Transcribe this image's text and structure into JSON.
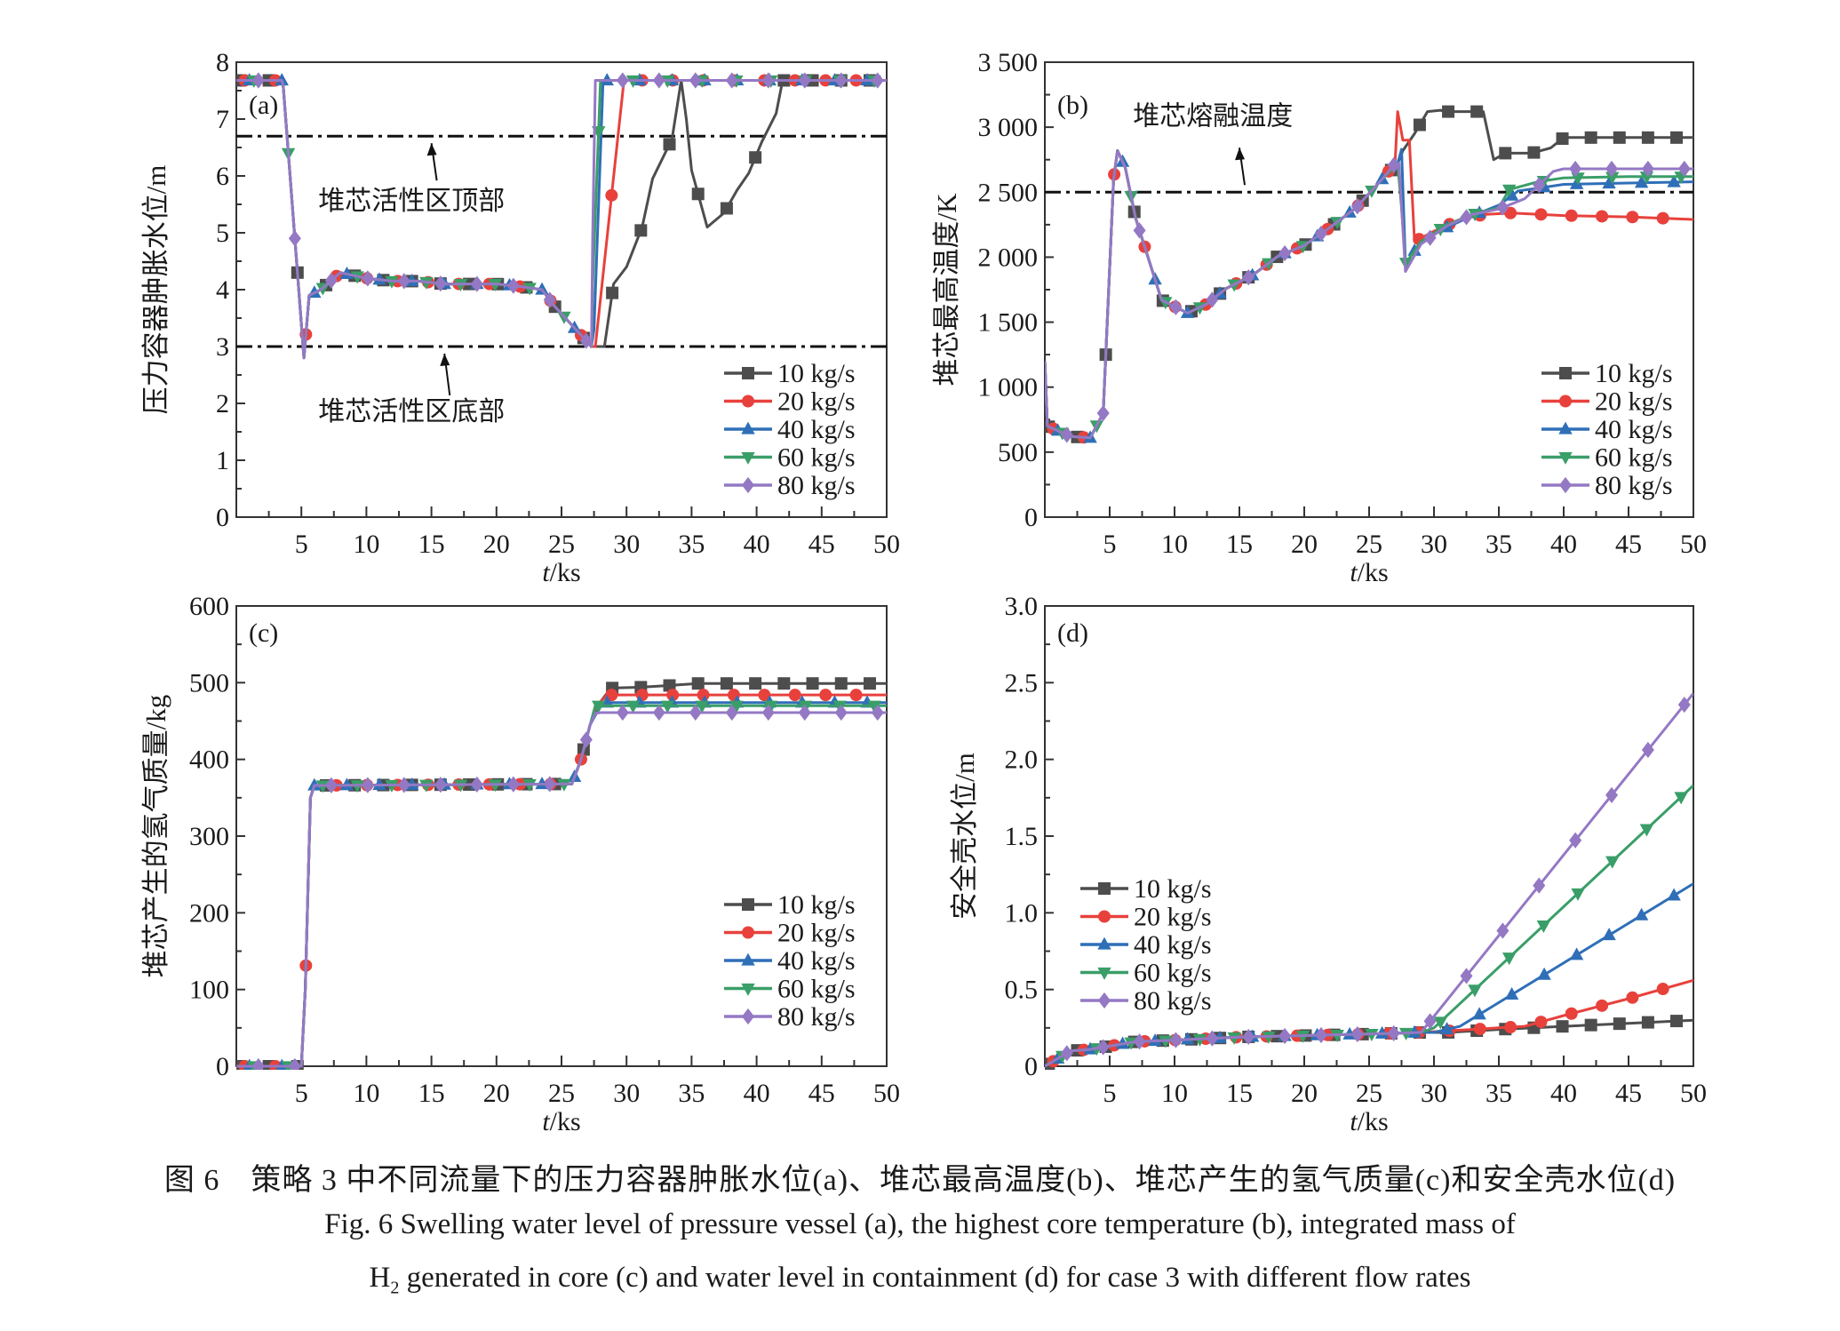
{
  "figure": {
    "caption_cn": "图 6　策略 3 中不同流量下的压力容器肿胀水位(a)、堆芯最高温度(b)、堆芯产生的氢气质量(c)和安全壳水位(d)",
    "caption_en_line1": "Fig. 6  Swelling water level of pressure vessel (a), the highest core temperature (b), integrated mass of",
    "caption_en_line2_prefix": "H",
    "caption_en_line2_sub": "2",
    "caption_en_line2_rest": " generated in core (c) and water level in containment (d) for case 3 with different flow rates"
  },
  "series_style": [
    {
      "name": "10 kg/s",
      "color": "#4d4d4d",
      "marker": "square"
    },
    {
      "name": "20 kg/s",
      "color": "#e8413c",
      "marker": "circle"
    },
    {
      "name": "40 kg/s",
      "color": "#2f6fb8",
      "marker": "triangle-up"
    },
    {
      "name": "60 kg/s",
      "color": "#3a9e68",
      "marker": "triangle-down"
    },
    {
      "name": "80 kg/s",
      "color": "#9478c4",
      "marker": "diamond"
    }
  ],
  "chart_data": [
    {
      "id": "a",
      "type": "line",
      "panel_label": "(a)",
      "xlabel_italic": "t",
      "xlabel_rest": "/ks",
      "ylabel": "压力容器肿胀水位/m",
      "xlim": [
        0,
        50
      ],
      "ylim": [
        0,
        8
      ],
      "xticks": [
        5,
        10,
        15,
        20,
        25,
        30,
        35,
        40,
        45,
        50
      ],
      "yticks": [
        0,
        1,
        2,
        3,
        4,
        5,
        6,
        7,
        8
      ],
      "ytick_labels": [
        "0",
        "1",
        "2",
        "3",
        "4",
        "5",
        "6",
        "7",
        "8"
      ],
      "legend_position": "bottom-right",
      "reference_lines": [
        {
          "y": 6.7,
          "label": "堆芯活性区顶部",
          "arrow_x": 15
        },
        {
          "y": 3.0,
          "label": "堆芯活性区底部",
          "arrow_x": 16
        }
      ],
      "series": [
        {
          "name": "10 kg/s",
          "x": [
            0,
            3.5,
            3.6,
            5.2,
            5.6,
            6.5,
            8,
            10,
            12,
            14,
            16,
            18,
            20,
            22,
            23.5,
            24.5,
            27.3,
            28.3,
            29,
            30,
            31.2,
            32,
            33.5,
            34.2,
            34.6,
            35,
            35.6,
            36.2,
            37.5,
            38.5,
            39.4,
            40.4,
            41.5,
            42,
            50
          ],
          "y": [
            7.68,
            7.68,
            7.6,
            2.8,
            3.9,
            4.0,
            4.3,
            4.2,
            4.15,
            4.15,
            4.1,
            4.1,
            4.1,
            4.05,
            4.0,
            3.7,
            3.0,
            3.0,
            4.1,
            4.4,
            5.1,
            5.95,
            6.65,
            7.68,
            7.0,
            6.1,
            5.6,
            5.1,
            5.35,
            5.75,
            6.05,
            6.6,
            7.1,
            7.68,
            7.68
          ]
        },
        {
          "name": "20 kg/s",
          "x": [
            0,
            3.5,
            3.6,
            5.2,
            5.6,
            6.5,
            8,
            10,
            12,
            14,
            16,
            18,
            20,
            22,
            23.5,
            24.5,
            27.3,
            27.6,
            29.8,
            50
          ],
          "y": [
            7.68,
            7.68,
            7.6,
            2.8,
            3.9,
            4.0,
            4.3,
            4.2,
            4.15,
            4.15,
            4.1,
            4.1,
            4.1,
            4.05,
            4.0,
            3.7,
            3.0,
            3.0,
            7.68,
            7.68
          ]
        },
        {
          "name": "40 kg/s",
          "x": [
            0,
            3.5,
            3.6,
            5.2,
            5.6,
            6.5,
            8,
            10,
            12,
            14,
            16,
            18,
            20,
            22,
            23.5,
            24.5,
            27.3,
            27.5,
            28.2,
            50
          ],
          "y": [
            7.68,
            7.68,
            7.6,
            2.8,
            3.9,
            4.0,
            4.3,
            4.2,
            4.15,
            4.15,
            4.1,
            4.1,
            4.1,
            4.05,
            4.0,
            3.7,
            3.0,
            3.3,
            7.68,
            7.68
          ]
        },
        {
          "name": "60 kg/s",
          "x": [
            0,
            3.5,
            3.6,
            5.2,
            5.6,
            6.5,
            8,
            10,
            12,
            14,
            16,
            18,
            20,
            22,
            23.5,
            24.5,
            27.3,
            27.4,
            28.0,
            50
          ],
          "y": [
            7.68,
            7.68,
            7.6,
            2.8,
            3.9,
            4.0,
            4.3,
            4.2,
            4.15,
            4.15,
            4.1,
            4.1,
            4.1,
            4.05,
            4.0,
            3.7,
            3.0,
            4.1,
            7.68,
            7.68
          ]
        },
        {
          "name": "80 kg/s",
          "x": [
            0,
            3.5,
            3.6,
            5.2,
            5.6,
            6.5,
            8,
            10,
            12,
            14,
            16,
            18,
            20,
            22,
            23.5,
            24.5,
            27.3,
            27.4,
            27.6,
            50
          ],
          "y": [
            7.68,
            7.68,
            7.6,
            2.8,
            3.9,
            4.0,
            4.3,
            4.2,
            4.15,
            4.15,
            4.1,
            4.1,
            4.1,
            4.05,
            4.0,
            3.7,
            3.0,
            4.95,
            7.68,
            7.68
          ]
        }
      ]
    },
    {
      "id": "b",
      "type": "line",
      "panel_label": "(b)",
      "xlabel_italic": "t",
      "xlabel_rest": "/ks",
      "ylabel": "堆芯最高温度/K",
      "xlim": [
        0,
        50
      ],
      "ylim": [
        0,
        3500
      ],
      "xticks": [
        5,
        10,
        15,
        20,
        25,
        30,
        35,
        40,
        45,
        50
      ],
      "yticks": [
        0,
        500,
        1000,
        1500,
        2000,
        2500,
        3000,
        3500
      ],
      "ytick_labels": [
        "0",
        "500",
        "1 000",
        "1 500",
        "2 000",
        "2 500",
        "3 000",
        "3 500"
      ],
      "legend_position": "bottom-right",
      "reference_lines": [
        {
          "y": 2500,
          "label": "堆芯熔融温度",
          "arrow_x": 15
        }
      ],
      "series": [
        {
          "name": "10 kg/s",
          "x": [
            0,
            0.2,
            2,
            3.5,
            4.5,
            5.3,
            5.6,
            6.2,
            7,
            9,
            11,
            12.5,
            14,
            16,
            18,
            20,
            22,
            24,
            26,
            27.2,
            27.6,
            28.5,
            29.5,
            30.5,
            31,
            33.8,
            34.6,
            35.5,
            37.5,
            39,
            40,
            50
          ],
          "y": [
            1200,
            700,
            620,
            610,
            800,
            2600,
            2820,
            2690,
            2300,
            1670,
            1570,
            1640,
            1760,
            1860,
            2010,
            2090,
            2230,
            2380,
            2600,
            2720,
            2820,
            2950,
            3120,
            3130,
            3120,
            3120,
            2750,
            2800,
            2800,
            2840,
            2920,
            2920
          ]
        },
        {
          "name": "20 kg/s",
          "x": [
            0,
            0.2,
            2,
            3.5,
            4.5,
            5.3,
            5.6,
            6.2,
            7,
            9,
            11,
            12.5,
            14,
            16,
            18,
            20,
            22,
            24,
            26,
            27.0,
            27.2,
            27.6,
            28.1,
            28.5,
            30,
            32,
            34,
            36,
            40,
            45,
            50
          ],
          "y": [
            1200,
            700,
            620,
            610,
            800,
            2600,
            2820,
            2690,
            2300,
            1670,
            1570,
            1640,
            1760,
            1860,
            2010,
            2090,
            2230,
            2380,
            2600,
            2720,
            3120,
            2900,
            2900,
            2120,
            2200,
            2290,
            2330,
            2340,
            2320,
            2310,
            2290
          ]
        },
        {
          "name": "40 kg/s",
          "x": [
            0,
            0.2,
            2,
            3.5,
            4.5,
            5.3,
            5.6,
            6.2,
            7,
            9,
            11,
            12.5,
            14,
            16,
            18,
            20,
            22,
            24,
            26,
            27.2,
            27.5,
            27.8,
            29,
            31,
            33,
            35,
            36.5,
            38,
            40,
            45,
            50
          ],
          "y": [
            1200,
            700,
            620,
            610,
            800,
            2600,
            2820,
            2690,
            2300,
            1670,
            1570,
            1640,
            1760,
            1860,
            2010,
            2090,
            2230,
            2380,
            2600,
            2720,
            2830,
            1950,
            2120,
            2230,
            2320,
            2400,
            2510,
            2530,
            2560,
            2570,
            2580
          ]
        },
        {
          "name": "60 kg/s",
          "x": [
            0,
            0.2,
            2,
            3.5,
            4.5,
            5.3,
            5.6,
            6.2,
            7,
            9,
            11,
            12.5,
            14,
            16,
            18,
            20,
            22,
            24,
            26,
            27.2,
            27.5,
            27.8,
            29,
            31,
            33,
            35,
            35.8,
            38,
            40,
            45,
            50
          ],
          "y": [
            1200,
            700,
            620,
            610,
            800,
            2600,
            2820,
            2690,
            2300,
            1670,
            1570,
            1640,
            1760,
            1860,
            2010,
            2090,
            2230,
            2380,
            2600,
            2720,
            2380,
            1950,
            2120,
            2250,
            2330,
            2380,
            2520,
            2580,
            2610,
            2620,
            2620
          ]
        },
        {
          "name": "80 kg/s",
          "x": [
            0,
            0.2,
            2,
            3.5,
            4.5,
            5.3,
            5.6,
            6.2,
            7,
            9,
            11,
            12.5,
            14,
            16,
            18,
            20,
            22,
            24,
            26,
            27.0,
            27.3,
            27.8,
            29,
            31,
            33,
            35,
            37,
            39.2,
            40,
            45,
            50
          ],
          "y": [
            1200,
            700,
            620,
            610,
            800,
            2600,
            2820,
            2690,
            2300,
            1670,
            1570,
            1640,
            1760,
            1860,
            2010,
            2090,
            2230,
            2380,
            2600,
            2720,
            2720,
            1890,
            2100,
            2240,
            2330,
            2370,
            2450,
            2660,
            2680,
            2680,
            2680
          ]
        }
      ]
    },
    {
      "id": "c",
      "type": "line",
      "panel_label": "(c)",
      "xlabel_italic": "t",
      "xlabel_rest": "/ks",
      "ylabel": "堆芯产生的氢气质量/kg",
      "xlim": [
        0,
        50
      ],
      "ylim": [
        0,
        600
      ],
      "xticks": [
        5,
        10,
        15,
        20,
        25,
        30,
        35,
        40,
        45,
        50
      ],
      "yticks": [
        0,
        100,
        200,
        300,
        400,
        500,
        600
      ],
      "ytick_labels": [
        "0",
        "100",
        "200",
        "300",
        "400",
        "500",
        "600"
      ],
      "legend_position": "bottom-right",
      "series": [
        {
          "name": "10 kg/s",
          "x": [
            0,
            5.0,
            5.3,
            5.7,
            6.0,
            25.8,
            26.5,
            27.2,
            28.0,
            28.8,
            31.0,
            33.0,
            35.5,
            50
          ],
          "y": [
            0,
            0,
            100,
            350,
            366,
            368,
            400,
            445,
            475,
            493,
            494,
            496,
            499,
            499
          ]
        },
        {
          "name": "20 kg/s",
          "x": [
            0,
            5.0,
            5.3,
            5.7,
            6.0,
            25.8,
            26.5,
            27.2,
            28.0,
            28.5,
            31.0,
            50
          ],
          "y": [
            0,
            0,
            100,
            350,
            366,
            368,
            400,
            445,
            475,
            484,
            484,
            484
          ]
        },
        {
          "name": "40 kg/s",
          "x": [
            0,
            5.0,
            5.3,
            5.7,
            6.0,
            25.8,
            26.5,
            27.2,
            28.0,
            28.3,
            50
          ],
          "y": [
            0,
            0,
            100,
            350,
            366,
            368,
            400,
            445,
            470,
            474,
            474
          ]
        },
        {
          "name": "60 kg/s",
          "x": [
            0,
            5.0,
            5.3,
            5.7,
            6.0,
            25.8,
            26.5,
            27.2,
            27.6,
            28.0,
            50
          ],
          "y": [
            0,
            0,
            100,
            350,
            366,
            368,
            400,
            445,
            470,
            470,
            470
          ]
        },
        {
          "name": "80 kg/s",
          "x": [
            0,
            5.0,
            5.3,
            5.7,
            6.0,
            25.8,
            26.5,
            27.2,
            27.6,
            28.0,
            50
          ],
          "y": [
            0,
            0,
            100,
            350,
            366,
            368,
            400,
            445,
            460,
            461,
            461
          ]
        }
      ]
    },
    {
      "id": "d",
      "type": "line",
      "panel_label": "(d)",
      "xlabel_italic": "t",
      "xlabel_rest": "/ks",
      "ylabel": "安全壳水位/m",
      "xlim": [
        0,
        50
      ],
      "ylim": [
        0,
        3.0
      ],
      "xticks": [
        5,
        10,
        15,
        20,
        25,
        30,
        35,
        40,
        45,
        50
      ],
      "yticks": [
        0,
        0.5,
        1.0,
        1.5,
        2.0,
        2.5,
        3.0
      ],
      "ytick_labels": [
        "0",
        "0.5",
        "1.0",
        "1.5",
        "2.0",
        "2.5",
        "3.0"
      ],
      "legend_position": "center-left",
      "series": [
        {
          "name": "10 kg/s",
          "x": [
            0,
            2,
            3.5,
            7,
            10,
            15,
            20,
            25,
            29,
            31,
            35,
            40,
            45,
            50
          ],
          "y": [
            0,
            0.1,
            0.11,
            0.16,
            0.17,
            0.19,
            0.2,
            0.21,
            0.22,
            0.22,
            0.24,
            0.26,
            0.28,
            0.3
          ]
        },
        {
          "name": "20 kg/s",
          "x": [
            0,
            2,
            3.5,
            7,
            10,
            15,
            20,
            25,
            29,
            31,
            35,
            37,
            40,
            45,
            50
          ],
          "y": [
            0,
            0.1,
            0.11,
            0.16,
            0.17,
            0.19,
            0.2,
            0.21,
            0.22,
            0.23,
            0.25,
            0.26,
            0.33,
            0.44,
            0.56
          ]
        },
        {
          "name": "40 kg/s",
          "x": [
            0,
            2,
            3.5,
            7,
            10,
            15,
            20,
            25,
            29,
            30,
            32,
            50
          ],
          "y": [
            0,
            0.1,
            0.11,
            0.16,
            0.17,
            0.19,
            0.2,
            0.21,
            0.22,
            0.22,
            0.26,
            1.19
          ]
        },
        {
          "name": "60 kg/s",
          "x": [
            0,
            2,
            3.5,
            7,
            10,
            15,
            20,
            25,
            29,
            30,
            50
          ],
          "y": [
            0,
            0.1,
            0.11,
            0.16,
            0.17,
            0.19,
            0.2,
            0.21,
            0.22,
            0.25,
            1.83
          ]
        },
        {
          "name": "80 kg/s",
          "x": [
            0,
            2,
            3.5,
            7,
            10,
            15,
            20,
            25,
            29,
            50
          ],
          "y": [
            0,
            0.1,
            0.11,
            0.16,
            0.17,
            0.19,
            0.2,
            0.21,
            0.22,
            2.43
          ]
        }
      ]
    }
  ]
}
